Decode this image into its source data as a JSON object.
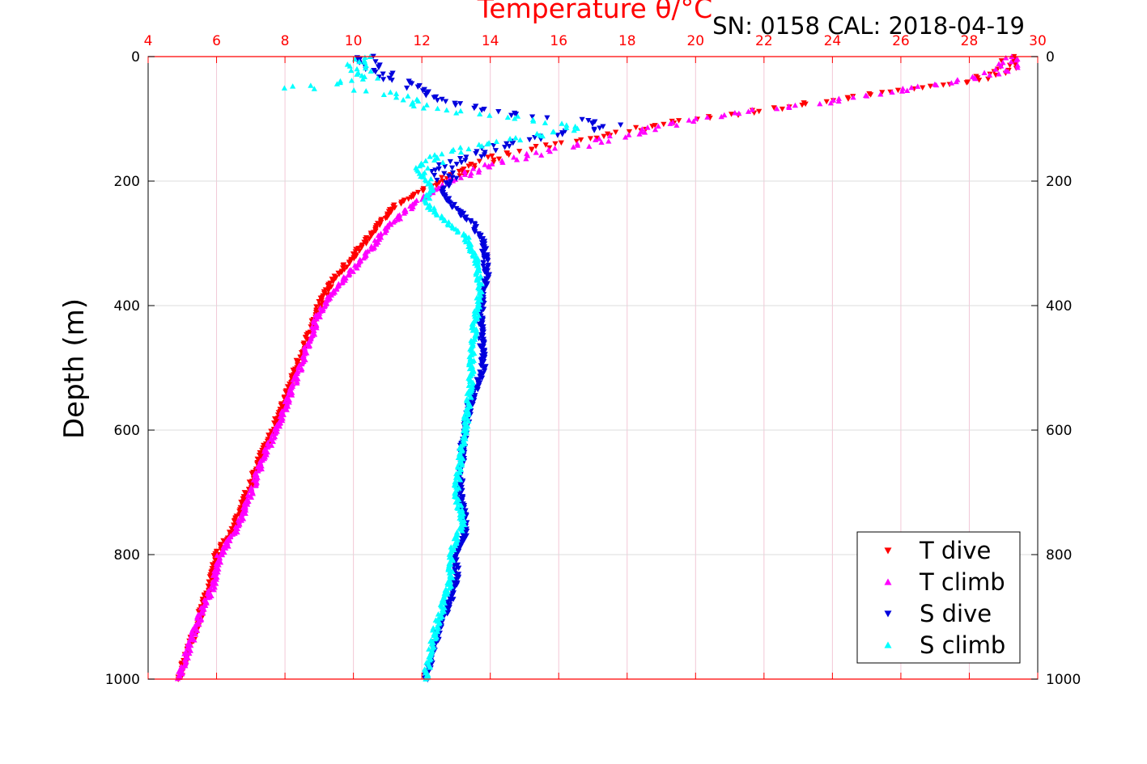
{
  "chart_data": {
    "type": "scatter",
    "title": "Temperature θ/°C",
    "subtitle": "SN: 0158  CAL: 2018-04-19",
    "xlabel": "Temperature θ/°C",
    "ylabel": "Depth (m)",
    "xlim": [
      4,
      30
    ],
    "ylim": [
      0,
      1000
    ],
    "y_reversed": true,
    "x_ticks": [
      "4",
      "6",
      "8",
      "10",
      "12",
      "14",
      "16",
      "18",
      "20",
      "22",
      "24",
      "26",
      "28",
      "30"
    ],
    "y_ticks": [
      "0",
      "200",
      "400",
      "600",
      "800",
      "1000"
    ],
    "grid": true,
    "legend_position": "bottom-right",
    "series": [
      {
        "name": "T dive",
        "color": "#ff0000",
        "marker": "triangle-down",
        "profile": [
          [
            29.2,
            0
          ],
          [
            29.1,
            20
          ],
          [
            28.0,
            40
          ],
          [
            26.5,
            50
          ],
          [
            24.0,
            70
          ],
          [
            21.5,
            90
          ],
          [
            20.0,
            100
          ],
          [
            18.5,
            115
          ],
          [
            16.5,
            135
          ],
          [
            15.0,
            150
          ],
          [
            14.0,
            165
          ],
          [
            13.0,
            190
          ],
          [
            12.0,
            215
          ],
          [
            11.2,
            240
          ],
          [
            10.6,
            280
          ],
          [
            10.0,
            320
          ],
          [
            9.4,
            360
          ],
          [
            9.0,
            400
          ],
          [
            8.6,
            460
          ],
          [
            8.2,
            520
          ],
          [
            7.8,
            580
          ],
          [
            7.3,
            640
          ],
          [
            6.9,
            700
          ],
          [
            6.5,
            760
          ],
          [
            6.0,
            800
          ],
          [
            5.8,
            850
          ],
          [
            5.5,
            900
          ],
          [
            5.2,
            950
          ],
          [
            4.9,
            1000
          ]
        ]
      },
      {
        "name": "T climb",
        "color": "#ff00ff",
        "marker": "triangle-up",
        "profile": [
          [
            29.2,
            0
          ],
          [
            29.1,
            20
          ],
          [
            27.8,
            40
          ],
          [
            26.0,
            55
          ],
          [
            23.5,
            75
          ],
          [
            21.0,
            92
          ],
          [
            19.5,
            105
          ],
          [
            18.0,
            125
          ],
          [
            16.5,
            145
          ],
          [
            15.0,
            160
          ],
          [
            14.0,
            175
          ],
          [
            13.0,
            195
          ],
          [
            12.2,
            220
          ],
          [
            11.5,
            250
          ],
          [
            10.9,
            280
          ],
          [
            10.2,
            330
          ],
          [
            9.5,
            370
          ],
          [
            9.0,
            410
          ],
          [
            8.7,
            460
          ],
          [
            8.3,
            520
          ],
          [
            7.9,
            580
          ],
          [
            7.4,
            640
          ],
          [
            7.0,
            700
          ],
          [
            6.6,
            760
          ],
          [
            6.1,
            800
          ],
          [
            5.9,
            850
          ],
          [
            5.5,
            900
          ],
          [
            5.2,
            950
          ],
          [
            4.9,
            1000
          ]
        ]
      },
      {
        "name": "S dive",
        "color": "#0000dd",
        "marker": "triangle-down",
        "profile": [
          [
            10.3,
            0
          ],
          [
            10.6,
            20
          ],
          [
            11.3,
            40
          ],
          [
            12.3,
            60
          ],
          [
            13.0,
            75
          ],
          [
            14.0,
            85
          ],
          [
            15.0,
            95
          ],
          [
            16.5,
            100
          ],
          [
            17.5,
            110
          ],
          [
            16.0,
            125
          ],
          [
            14.5,
            140
          ],
          [
            13.5,
            160
          ],
          [
            12.5,
            180
          ],
          [
            12.8,
            200
          ],
          [
            12.6,
            220
          ],
          [
            13.0,
            245
          ],
          [
            13.5,
            270
          ],
          [
            13.8,
            300
          ],
          [
            13.9,
            350
          ],
          [
            13.7,
            420
          ],
          [
            13.8,
            500
          ],
          [
            13.4,
            560
          ],
          [
            13.2,
            620
          ],
          [
            13.1,
            700
          ],
          [
            13.3,
            760
          ],
          [
            13.0,
            800
          ],
          [
            13.0,
            850
          ],
          [
            12.5,
            920
          ],
          [
            12.3,
            960
          ],
          [
            12.1,
            1000
          ]
        ]
      },
      {
        "name": "S climb",
        "color": "#00ffff",
        "marker": "triangle-up",
        "profile": [
          [
            10.4,
            0
          ],
          [
            10.0,
            20
          ],
          [
            10.8,
            35
          ],
          [
            8.2,
            50
          ],
          [
            10.5,
            55
          ],
          [
            11.5,
            65
          ],
          [
            12.0,
            80
          ],
          [
            13.0,
            90
          ],
          [
            14.5,
            95
          ],
          [
            15.5,
            105
          ],
          [
            16.5,
            115
          ],
          [
            15.0,
            130
          ],
          [
            13.5,
            145
          ],
          [
            12.5,
            160
          ],
          [
            12.0,
            185
          ],
          [
            12.3,
            210
          ],
          [
            12.1,
            235
          ],
          [
            12.6,
            260
          ],
          [
            13.3,
            290
          ],
          [
            13.6,
            330
          ],
          [
            13.7,
            370
          ],
          [
            13.5,
            450
          ],
          [
            13.4,
            540
          ],
          [
            13.2,
            620
          ],
          [
            13.0,
            700
          ],
          [
            13.2,
            750
          ],
          [
            12.9,
            790
          ],
          [
            12.8,
            850
          ],
          [
            12.4,
            920
          ],
          [
            12.1,
            1000
          ]
        ]
      }
    ]
  }
}
